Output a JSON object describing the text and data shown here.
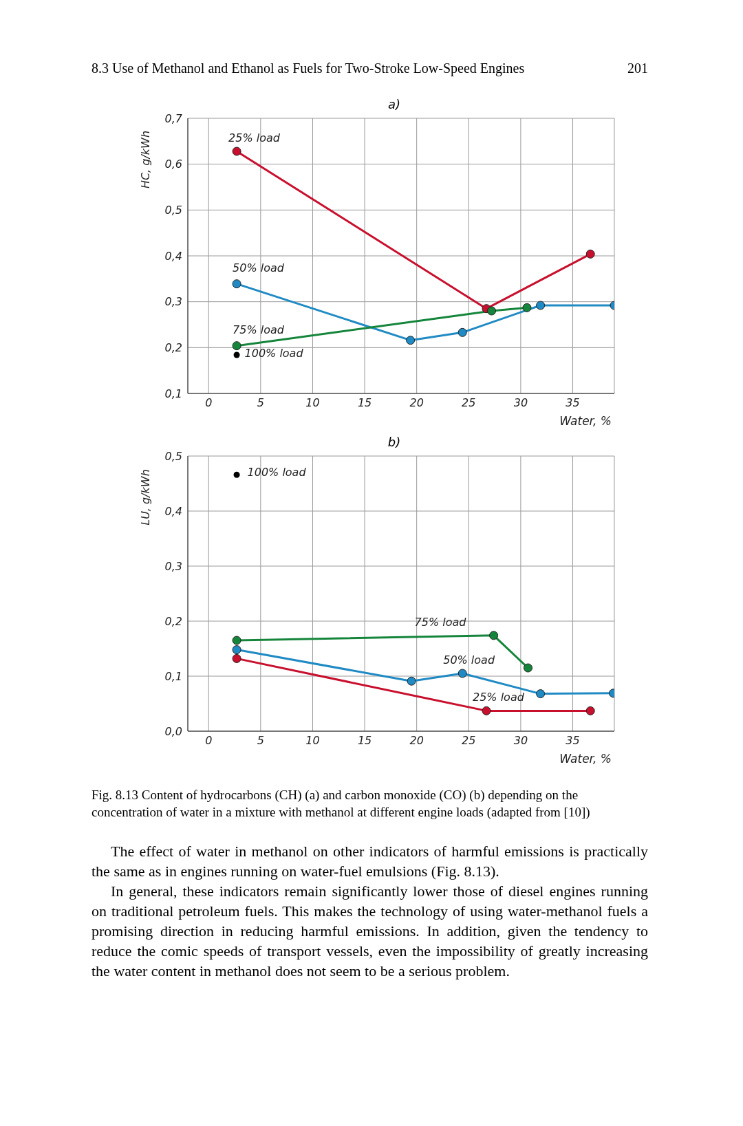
{
  "chart_data": [
    {
      "type": "line",
      "title": "a)",
      "xlabel": "Water, %",
      "ylabel": "HC, g/kWh",
      "xlim": [
        -2,
        39
      ],
      "xticks": [
        0,
        5,
        10,
        15,
        20,
        25,
        30,
        35
      ],
      "ylim": [
        0.1,
        0.7
      ],
      "yticks": [
        {
          "value": 0.1,
          "label": "0,1"
        },
        {
          "value": 0.2,
          "label": "0,2"
        },
        {
          "value": 0.3,
          "label": "0,3"
        },
        {
          "value": 0.4,
          "label": "0,4"
        },
        {
          "value": 0.5,
          "label": "0,5"
        },
        {
          "value": 0.6,
          "label": "0,6"
        },
        {
          "value": 0.7,
          "label": "0,7"
        }
      ],
      "grid": true,
      "marker": "circle",
      "line_style": "solid",
      "annotations": [
        "8.3 Use of Methanol and Ethanol as Fuels for Two-Stroke Low-Speed Engines",
        "201"
      ],
      "series": [
        {
          "name": "25% load",
          "color": "#c8102e",
          "x": [
            2.7,
            26.7,
            36.7
          ],
          "values": [
            0.628,
            0.285,
            0.404
          ]
        },
        {
          "name": "50% load",
          "color": "#1f8ac4",
          "x": [
            2.7,
            19.4,
            24.4,
            31.9,
            39
          ],
          "values": [
            0.339,
            0.216,
            0.233,
            0.292,
            0.292
          ]
        },
        {
          "name": "75% load",
          "color": "#14853a",
          "x": [
            2.7,
            27.2,
            30.6
          ],
          "values": [
            0.204,
            0.28,
            0.287
          ]
        },
        {
          "name": "100% load",
          "color": "#000000",
          "type": "scatter",
          "x": [
            2.7
          ],
          "values": [
            0.184
          ]
        }
      ]
    },
    {
      "type": "line",
      "title": "b)",
      "xlabel": "Water, %",
      "ylabel": "LU, g/kWh",
      "xlim": [
        -2,
        39
      ],
      "xticks": [
        0,
        5,
        10,
        15,
        20,
        25,
        30,
        35
      ],
      "ylim": [
        0,
        0.5
      ],
      "yticks": [
        {
          "value": 0,
          "label": "0,0"
        },
        {
          "value": 0.1,
          "label": "0,1"
        },
        {
          "value": 0.2,
          "label": "0,2"
        },
        {
          "value": 0.3,
          "label": "0,3"
        },
        {
          "value": 0.4,
          "label": "0,4"
        },
        {
          "value": 0.5,
          "label": "0,5"
        }
      ],
      "grid": true,
      "marker": "circle",
      "line_style": "solid",
      "annotations": [
        "Fig. 8.13 Content of hydrocarbons (CH) (a) and carbon monoxide (CO) (b) depending on the concentration of water in a mixture with methanol at different engine loads (adapted from [10])",
        "The effect of water in methanol on other indicators of harmful emissions is practically the same as in engines running on water-fuel emulsions (Fig. 8.13).",
        "In general, these indicators remain significantly lower those of diesel engines running on traditional petroleum fuels. This makes the technology of using water-methanol fuels a promising direction in reducing harmful emissions. In addition, given the tendency to reduce the comic speeds of transport vessels, even the impossibility of greatly increasing the water content in methanol does not seem to be a serious problem."
      ],
      "series": [
        {
          "name": "25% load",
          "color": "#c8102e",
          "x": [
            2.7,
            26.7,
            36.7
          ],
          "values": [
            0.132,
            0.037,
            0.037
          ]
        },
        {
          "name": "50% load",
          "color": "#1f8ac4",
          "x": [
            2.7,
            19.5,
            24.4,
            31.9,
            38.9
          ],
          "values": [
            0.148,
            0.091,
            0.105,
            0.068,
            0.069
          ]
        },
        {
          "name": "75% load",
          "color": "#14853a",
          "x": [
            2.7,
            27.4,
            30.7
          ],
          "values": [
            0.165,
            0.174,
            0.115
          ]
        },
        {
          "name": "100% load",
          "color": "#000000",
          "type": "scatter",
          "x": [
            2.7
          ],
          "values": [
            0.466
          ]
        }
      ]
    }
  ]
}
